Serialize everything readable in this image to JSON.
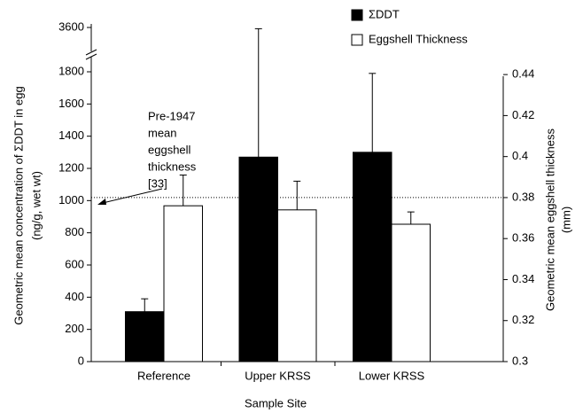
{
  "chart_data": {
    "type": "bar",
    "xlabel": "Sample Site",
    "ylabel": [
      "Geometric mean concentration of ΣDDT in egg",
      "(ng/g, wet wt)"
    ],
    "y2label": [
      "Geometric mean eggshell thickness",
      "(mm)"
    ],
    "categories": [
      "Reference",
      "Upper KRSS",
      "Lower KRSS"
    ],
    "series": [
      {
        "name": "ΣDDT",
        "color": "#000000",
        "values": [
          310,
          1270,
          1300
        ],
        "errors": [
          80,
          2280,
          490
        ]
      },
      {
        "name": "Eggshell Thickness",
        "color": "#ffffff",
        "axis": "y2",
        "values": [
          0.376,
          0.374,
          0.367
        ],
        "errors": [
          0.015,
          0.014,
          0.006
        ]
      }
    ],
    "ylim": [
      0,
      3600
    ],
    "yticks": [
      0,
      200,
      400,
      600,
      800,
      1000,
      1200,
      1400,
      1600,
      1800,
      3600
    ],
    "axis_break": [
      1800,
      3600
    ],
    "y2lim": [
      0.3,
      0.45
    ],
    "y2ticks": [
      0.3,
      0.32,
      0.34,
      0.36,
      0.38,
      0.4,
      0.42,
      0.44
    ],
    "reference_line": {
      "axis": "y2",
      "value": 0.38
    },
    "annotation": [
      "Pre-1947",
      "mean",
      "eggshell",
      "thickness",
      "[33]"
    ],
    "legend": "top-right"
  }
}
